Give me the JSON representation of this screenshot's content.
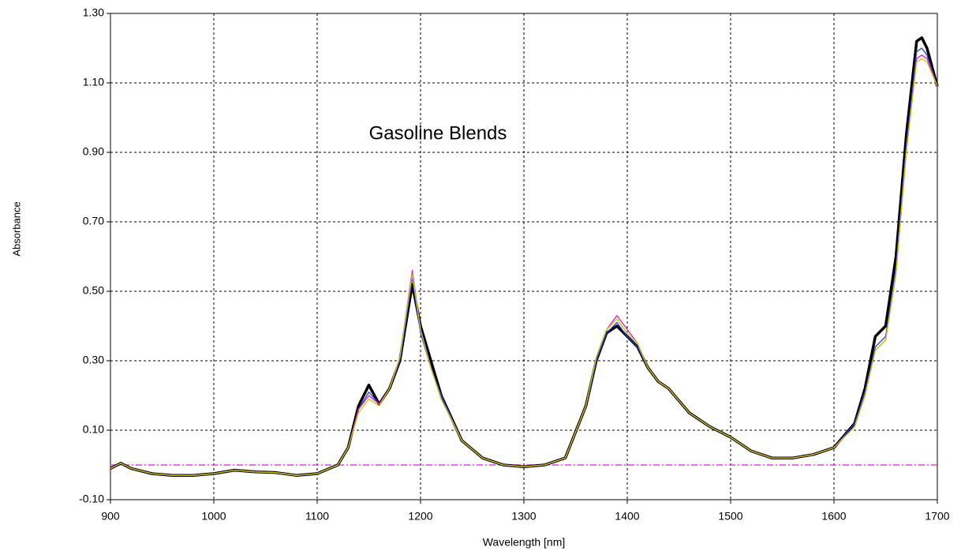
{
  "chart_data": {
    "type": "line",
    "title": "Gasoline Blends",
    "x_label": "Wavelength [nm]",
    "y_label": "Absorbance",
    "x": [
      900,
      910,
      920,
      940,
      960,
      980,
      1000,
      1020,
      1040,
      1060,
      1080,
      1100,
      1120,
      1130,
      1140,
      1150,
      1160,
      1170,
      1180,
      1192,
      1200,
      1210,
      1220,
      1240,
      1260,
      1280,
      1300,
      1320,
      1340,
      1360,
      1370,
      1380,
      1390,
      1400,
      1410,
      1420,
      1430,
      1440,
      1460,
      1480,
      1500,
      1520,
      1540,
      1560,
      1580,
      1600,
      1620,
      1630,
      1640,
      1650,
      1660,
      1670,
      1680,
      1685,
      1690,
      1700
    ],
    "series": [
      {
        "color": "#000000",
        "values": [
          -0.01,
          0.005,
          -0.01,
          -0.025,
          -0.03,
          -0.03,
          -0.025,
          -0.015,
          -0.02,
          -0.022,
          -0.03,
          -0.025,
          0.0,
          0.05,
          0.17,
          0.23,
          0.175,
          0.22,
          0.3,
          0.52,
          0.4,
          0.3,
          0.2,
          0.07,
          0.02,
          0.0,
          -0.005,
          0.0,
          0.02,
          0.17,
          0.3,
          0.38,
          0.4,
          0.37,
          0.34,
          0.28,
          0.24,
          0.22,
          0.15,
          0.11,
          0.08,
          0.04,
          0.02,
          0.02,
          0.03,
          0.05,
          0.12,
          0.22,
          0.37,
          0.4,
          0.6,
          0.95,
          1.22,
          1.23,
          1.2,
          1.09
        ]
      },
      {
        "color": "#2040e0",
        "values": [
          -0.01,
          0.005,
          -0.01,
          -0.025,
          -0.03,
          -0.03,
          -0.025,
          -0.015,
          -0.02,
          -0.022,
          -0.03,
          -0.025,
          0.0,
          0.05,
          0.16,
          0.21,
          0.175,
          0.22,
          0.3,
          0.54,
          0.38,
          0.28,
          0.2,
          0.07,
          0.02,
          0.0,
          -0.005,
          0.0,
          0.02,
          0.17,
          0.3,
          0.38,
          0.41,
          0.37,
          0.34,
          0.28,
          0.24,
          0.22,
          0.15,
          0.11,
          0.08,
          0.04,
          0.02,
          0.02,
          0.03,
          0.05,
          0.12,
          0.21,
          0.34,
          0.37,
          0.57,
          0.92,
          1.19,
          1.2,
          1.18,
          1.09
        ]
      },
      {
        "color": "#e020c0",
        "values": [
          -0.01,
          0.005,
          -0.01,
          -0.025,
          -0.03,
          -0.03,
          -0.025,
          -0.015,
          -0.02,
          -0.022,
          -0.03,
          -0.025,
          0.0,
          0.05,
          0.16,
          0.2,
          0.175,
          0.22,
          0.31,
          0.56,
          0.39,
          0.28,
          0.19,
          0.07,
          0.02,
          0.0,
          -0.005,
          0.0,
          0.02,
          0.17,
          0.31,
          0.39,
          0.43,
          0.39,
          0.35,
          0.28,
          0.24,
          0.22,
          0.15,
          0.11,
          0.08,
          0.04,
          0.02,
          0.02,
          0.03,
          0.05,
          0.11,
          0.2,
          0.33,
          0.36,
          0.55,
          0.9,
          1.17,
          1.18,
          1.17,
          1.09
        ]
      },
      {
        "color": "#c8c800",
        "values": [
          -0.01,
          0.005,
          -0.01,
          -0.025,
          -0.03,
          -0.03,
          -0.025,
          -0.015,
          -0.02,
          -0.022,
          -0.03,
          -0.025,
          0.0,
          0.05,
          0.15,
          0.19,
          0.17,
          0.22,
          0.31,
          0.55,
          0.39,
          0.28,
          0.19,
          0.07,
          0.02,
          0.0,
          -0.005,
          0.0,
          0.02,
          0.17,
          0.31,
          0.39,
          0.42,
          0.38,
          0.35,
          0.28,
          0.24,
          0.22,
          0.15,
          0.11,
          0.08,
          0.04,
          0.02,
          0.02,
          0.03,
          0.05,
          0.11,
          0.2,
          0.33,
          0.36,
          0.55,
          0.9,
          1.16,
          1.17,
          1.16,
          1.09
        ]
      }
    ],
    "reference_line": {
      "value": 0,
      "color": "#e040e0"
    },
    "xlim": [
      900,
      1700
    ],
    "xticks": [
      900,
      1000,
      1100,
      1200,
      1300,
      1400,
      1500,
      1600,
      1700
    ],
    "ylim": [
      -0.1,
      1.3
    ],
    "yticks": [
      {
        "value": -0.1,
        "label": "-0.10"
      },
      {
        "value": 0.1,
        "label": "0.10"
      },
      {
        "value": 0.3,
        "label": "0.30"
      },
      {
        "value": 0.5,
        "label": "0.50"
      },
      {
        "value": 0.7,
        "label": "0.70"
      },
      {
        "value": 0.9,
        "label": "0.90"
      },
      {
        "value": 1.1,
        "label": "1.10"
      },
      {
        "value": 1.3,
        "label": "1.30"
      }
    ],
    "grid": true
  }
}
